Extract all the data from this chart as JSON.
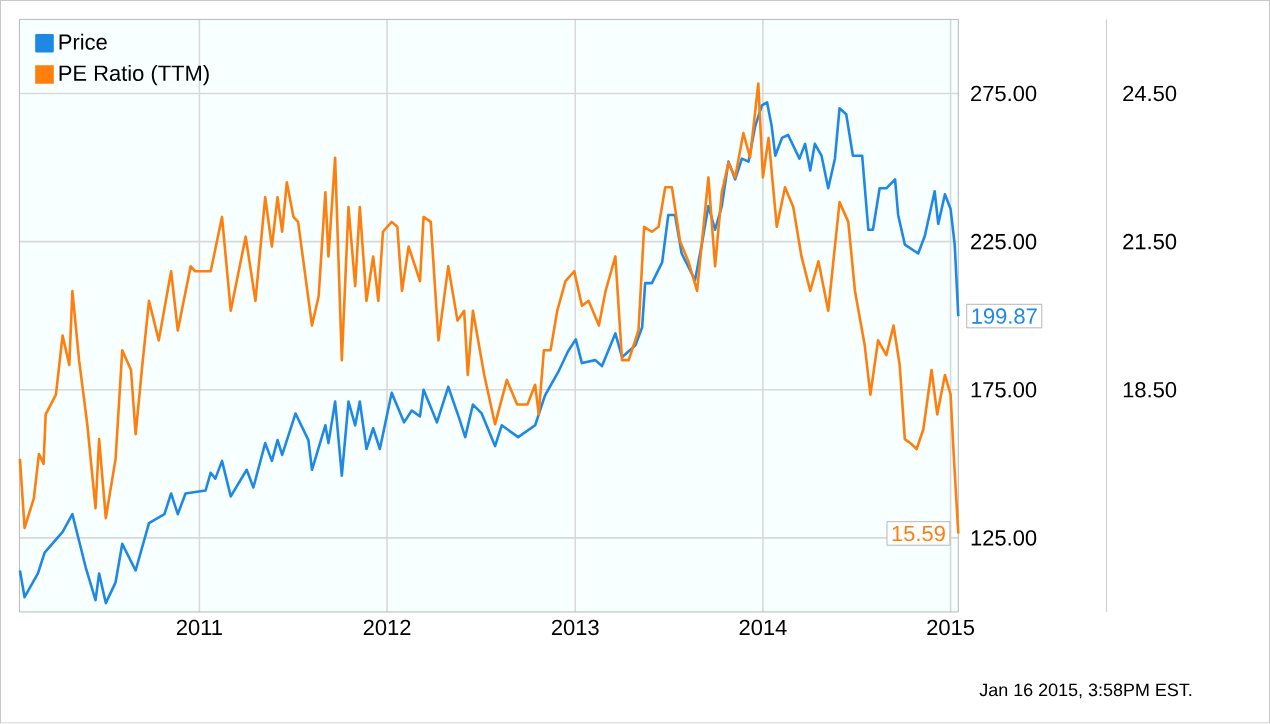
{
  "chart_data": {
    "type": "line",
    "xlim": [
      "2010-01-16",
      "2015-01-16"
    ],
    "xticks": [
      {
        "value": "2011-01-01",
        "label": "2011"
      },
      {
        "value": "2012-01-01",
        "label": "2012"
      },
      {
        "value": "2013-01-01",
        "label": "2013"
      },
      {
        "value": "2014-01-01",
        "label": "2014"
      },
      {
        "value": "2015-01-01",
        "label": "2015"
      }
    ],
    "ylim": [
      100,
      300
    ],
    "yticks": [
      {
        "value": 125,
        "label": "125.00"
      },
      {
        "value": 175,
        "label": "175.00"
      },
      {
        "value": 225,
        "label": "225.00"
      },
      {
        "value": 275,
        "label": "275.00"
      }
    ],
    "y2lim": [
      14,
      26
    ],
    "y2ticks": [
      {
        "value": 18.5,
        "label": "18.50"
      },
      {
        "value": 21.5,
        "label": "21.50"
      },
      {
        "value": 24.5,
        "label": "24.50"
      }
    ],
    "grid": true,
    "legend": "top left",
    "marker": "none",
    "annotations": [
      "Jan 16 2015, 3:58PM EST."
    ],
    "series": [
      {
        "name": "Price",
        "color": "#1f88e5",
        "x": [
          "2010-01-17",
          "2010-01-26",
          "2010-02-21",
          "2010-03-06",
          "2010-04-10",
          "2010-04-29",
          "2010-05-25",
          "2010-06-13",
          "2010-06-20",
          "2010-07-03",
          "2010-07-22",
          "2010-08-04",
          "2010-08-30",
          "2010-09-25",
          "2010-10-25",
          "2010-11-07",
          "2010-11-20",
          "2010-12-05",
          "2011-01-13",
          "2011-01-23",
          "2011-02-01",
          "2011-02-14",
          "2011-03-03",
          "2011-04-03",
          "2011-04-16",
          "2011-05-09",
          "2011-05-22",
          "2011-06-02",
          "2011-06-11",
          "2011-07-07",
          "2011-08-01",
          "2011-08-08",
          "2011-09-03",
          "2011-09-09",
          "2011-09-22",
          "2011-10-05",
          "2011-10-18",
          "2011-10-31",
          "2011-11-09",
          "2011-11-22",
          "2011-12-05",
          "2011-12-18",
          "2012-01-10",
          "2012-02-03",
          "2012-02-18",
          "2012-03-05",
          "2012-03-12",
          "2012-04-07",
          "2012-04-29",
          "2012-05-21",
          "2012-06-01",
          "2012-06-16",
          "2012-07-03",
          "2012-07-29",
          "2012-08-11",
          "2012-09-12",
          "2012-10-15",
          "2012-11-03",
          "2012-11-29",
          "2012-12-18",
          "2013-01-02",
          "2013-01-14",
          "2013-02-09",
          "2013-02-22",
          "2013-03-20",
          "2013-04-02",
          "2013-04-28",
          "2013-05-11",
          "2013-05-17",
          "2013-05-30",
          "2013-06-19",
          "2013-07-01",
          "2013-07-14",
          "2013-07-27",
          "2013-08-22",
          "2013-09-04",
          "2013-09-17",
          "2013-09-30",
          "2013-10-13",
          "2013-10-26",
          "2013-11-08",
          "2013-11-21",
          "2013-12-04",
          "2013-12-17",
          "2013-12-30",
          "2014-01-09",
          "2014-01-18",
          "2014-01-25",
          "2014-02-07",
          "2014-02-19",
          "2014-03-13",
          "2014-03-24",
          "2014-04-03",
          "2014-04-12",
          "2014-04-25",
          "2014-05-08",
          "2014-05-21",
          "2014-05-30",
          "2014-06-12",
          "2014-06-25",
          "2014-07-13",
          "2014-07-25",
          "2014-08-03",
          "2014-08-16",
          "2014-08-29",
          "2014-09-15",
          "2014-09-21",
          "2014-10-04",
          "2014-10-30",
          "2014-11-12",
          "2014-12-01",
          "2014-12-08",
          "2014-12-21",
          "2015-01-01",
          "2015-01-09",
          "2015-01-16"
        ],
        "values": [
          114,
          105,
          113,
          120,
          127,
          133,
          115,
          104,
          113,
          103,
          110,
          123,
          114,
          130,
          133,
          140,
          133,
          140,
          141,
          147,
          145,
          151,
          139,
          148,
          142,
          157,
          151,
          158,
          153,
          167,
          158,
          148,
          163,
          157,
          171,
          146,
          171,
          163,
          171,
          155,
          162,
          155,
          174,
          164,
          168,
          166,
          175,
          164,
          176,
          165,
          159,
          170,
          167,
          156,
          163,
          159,
          163,
          173,
          181,
          188,
          192,
          184,
          185,
          183,
          194,
          186,
          190,
          196,
          211,
          211,
          218,
          234,
          234,
          221,
          212,
          224,
          237,
          229,
          237,
          252,
          246,
          253,
          252,
          264,
          271,
          272,
          264,
          254,
          260,
          261,
          253,
          258,
          249,
          258,
          254,
          243,
          253,
          270,
          268,
          254,
          254,
          229,
          229,
          243,
          243,
          246,
          234,
          224,
          221,
          227,
          242,
          231,
          241,
          236,
          224,
          199.87
        ],
        "value_labels": [
          null,
          null,
          null,
          null,
          null,
          null,
          null,
          null,
          null,
          null,
          null,
          null,
          null,
          null,
          null,
          null,
          null,
          null,
          null,
          null,
          null,
          null,
          null,
          null,
          null,
          null,
          null,
          null,
          null,
          null,
          null,
          null,
          null,
          null,
          null,
          null,
          null,
          null,
          null,
          null,
          null,
          null,
          null,
          null,
          null,
          null,
          null,
          null,
          null,
          null,
          null,
          null,
          null,
          null,
          null,
          null,
          null,
          null,
          null,
          null,
          null,
          null,
          null,
          null,
          null,
          null,
          null,
          null,
          null,
          null,
          null,
          null,
          null,
          null,
          null,
          null,
          null,
          null,
          null,
          null,
          null,
          null,
          null,
          null,
          null,
          null,
          null,
          null,
          null,
          null,
          null,
          null,
          null,
          null,
          null,
          null,
          null,
          null,
          null,
          null,
          null,
          null,
          null,
          null,
          null,
          null,
          null,
          null,
          null,
          null,
          null,
          null,
          null,
          null,
          null,
          "199.87"
        ]
      },
      {
        "name": "PE Ratio (TTM)",
        "color": "#ff7f0e",
        "axis": "y2",
        "x": [
          "2010-01-17",
          "2010-01-26",
          "2010-02-13",
          "2010-02-23",
          "2010-03-04",
          "2010-03-08",
          "2010-03-28",
          "2010-04-10",
          "2010-04-23",
          "2010-04-29",
          "2010-05-12",
          "2010-05-28",
          "2010-06-13",
          "2010-06-20",
          "2010-07-03",
          "2010-07-22",
          "2010-08-04",
          "2010-08-21",
          "2010-08-30",
          "2010-09-12",
          "2010-09-25",
          "2010-10-14",
          "2010-11-07",
          "2010-11-20",
          "2010-12-15",
          "2010-12-24",
          "2011-01-06",
          "2011-01-23",
          "2011-02-14",
          "2011-03-03",
          "2011-04-01",
          "2011-04-20",
          "2011-05-09",
          "2011-05-22",
          "2011-06-02",
          "2011-06-11",
          "2011-06-20",
          "2011-07-03",
          "2011-07-12",
          "2011-08-08",
          "2011-08-21",
          "2011-09-03",
          "2011-09-09",
          "2011-09-22",
          "2011-10-05",
          "2011-10-18",
          "2011-10-31",
          "2011-11-09",
          "2011-11-22",
          "2011-12-05",
          "2011-12-15",
          "2011-12-24",
          "2012-01-10",
          "2012-01-21",
          "2012-01-30",
          "2012-02-12",
          "2012-03-05",
          "2012-03-12",
          "2012-03-26",
          "2012-04-10",
          "2012-04-29",
          "2012-05-17",
          "2012-05-30",
          "2012-06-06",
          "2012-06-16",
          "2012-07-08",
          "2012-07-29",
          "2012-08-21",
          "2012-09-10",
          "2012-09-30",
          "2012-10-15",
          "2012-10-22",
          "2012-11-01",
          "2012-11-14",
          "2012-11-27",
          "2012-12-13",
          "2012-12-30",
          "2013-01-14",
          "2013-01-27",
          "2013-02-16",
          "2013-03-01",
          "2013-03-20",
          "2013-04-02",
          "2013-04-15",
          "2013-05-04",
          "2013-05-15",
          "2013-05-30",
          "2013-06-12",
          "2013-06-25",
          "2013-07-08",
          "2013-07-24",
          "2013-08-09",
          "2013-08-26",
          "2013-09-17",
          "2013-09-30",
          "2013-10-13",
          "2013-10-26",
          "2013-11-08",
          "2013-11-24",
          "2013-12-07",
          "2013-12-23",
          "2014-01-01",
          "2014-01-12",
          "2014-01-28",
          "2014-02-13",
          "2014-03-01",
          "2014-03-17",
          "2014-04-03",
          "2014-04-19",
          "2014-05-08",
          "2014-05-30",
          "2014-06-16",
          "2014-06-29",
          "2014-07-18",
          "2014-07-29",
          "2014-08-13",
          "2014-08-29",
          "2014-09-12",
          "2014-09-24",
          "2014-10-04",
          "2014-10-17",
          "2014-10-27",
          "2014-11-09",
          "2014-11-25",
          "2014-12-06",
          "2014-12-21",
          "2015-01-01",
          "2015-01-07",
          "2015-01-16"
        ],
        "values": [
          17.1,
          15.7,
          16.3,
          17.2,
          17.0,
          18.0,
          18.4,
          19.6,
          19.0,
          20.5,
          19.1,
          17.8,
          16.1,
          17.5,
          15.9,
          17.1,
          19.3,
          18.9,
          17.6,
          19.0,
          20.3,
          19.5,
          20.9,
          19.7,
          21.0,
          20.9,
          20.9,
          20.9,
          22.0,
          20.1,
          21.6,
          20.3,
          22.4,
          21.4,
          22.4,
          21.7,
          22.7,
          22.0,
          21.9,
          19.8,
          20.4,
          22.5,
          21.2,
          23.2,
          19.1,
          22.2,
          20.6,
          22.2,
          20.3,
          21.2,
          20.3,
          21.7,
          21.9,
          21.8,
          20.5,
          21.4,
          20.7,
          22.0,
          21.9,
          19.5,
          21.0,
          19.9,
          20.1,
          18.8,
          20.1,
          18.8,
          17.8,
          18.7,
          18.2,
          18.2,
          18.6,
          18.0,
          19.3,
          19.3,
          20.1,
          20.7,
          20.9,
          20.2,
          20.3,
          19.8,
          20.5,
          21.2,
          19.1,
          19.1,
          19.7,
          21.8,
          21.7,
          21.8,
          22.6,
          22.6,
          21.5,
          21.1,
          20.5,
          22.8,
          21.0,
          22.5,
          23.1,
          22.8,
          23.7,
          23.2,
          24.7,
          22.8,
          23.6,
          21.8,
          22.6,
          22.2,
          21.2,
          20.5,
          21.1,
          20.1,
          22.3,
          21.9,
          20.5,
          19.4,
          18.4,
          19.5,
          19.2,
          19.8,
          19.0,
          17.5,
          17.4,
          17.3,
          17.7,
          18.9,
          18.0,
          18.8,
          18.4,
          17.2,
          15.59
        ],
        "value_labels": [
          null,
          null,
          null,
          null,
          null,
          null,
          null,
          null,
          null,
          null,
          null,
          null,
          null,
          null,
          null,
          null,
          null,
          null,
          null,
          null,
          null,
          null,
          null,
          null,
          null,
          null,
          null,
          null,
          null,
          null,
          null,
          null,
          null,
          null,
          null,
          null,
          null,
          null,
          null,
          null,
          null,
          null,
          null,
          null,
          null,
          null,
          null,
          null,
          null,
          null,
          null,
          null,
          null,
          null,
          null,
          null,
          null,
          null,
          null,
          null,
          null,
          null,
          null,
          null,
          null,
          null,
          null,
          null,
          null,
          null,
          null,
          null,
          null,
          null,
          null,
          null,
          null,
          null,
          null,
          null,
          null,
          null,
          null,
          null,
          null,
          null,
          null,
          null,
          null,
          null,
          null,
          null,
          null,
          null,
          null,
          null,
          null,
          null,
          null,
          null,
          null,
          null,
          null,
          null,
          null,
          null,
          null,
          null,
          null,
          null,
          null,
          null,
          null,
          null,
          null,
          null,
          null,
          null,
          null,
          null,
          null,
          null,
          null,
          null,
          null,
          null,
          null,
          null,
          "15.59"
        ]
      }
    ]
  }
}
